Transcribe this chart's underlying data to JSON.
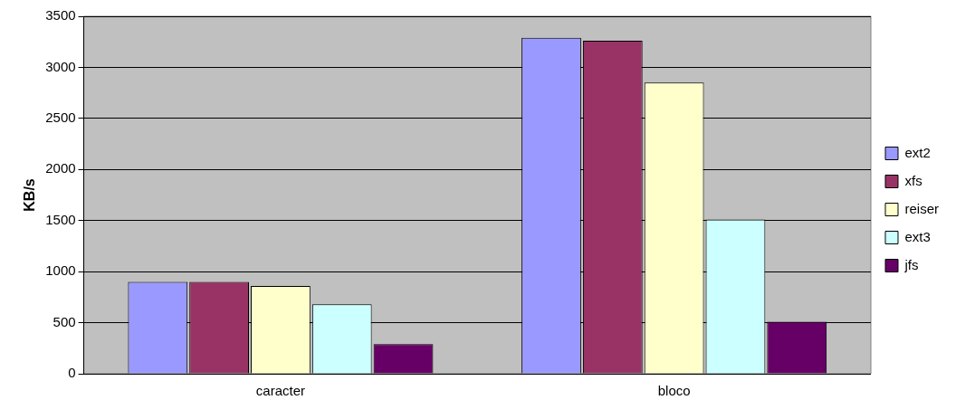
{
  "chart_data": {
    "type": "bar",
    "ylabel": "KB/s",
    "categories": [
      "caracter",
      "bloco"
    ],
    "series": [
      {
        "name": "ext2",
        "color": "#9999ff",
        "values": [
          900,
          3290
        ]
      },
      {
        "name": "xfs",
        "color": "#993366",
        "values": [
          900,
          3260
        ]
      },
      {
        "name": "reiser",
        "color": "#ffffcc",
        "values": [
          860,
          2850
        ]
      },
      {
        "name": "ext3",
        "color": "#ccffff",
        "values": [
          680,
          1510
        ]
      },
      {
        "name": "jfs",
        "color": "#660066",
        "values": [
          290,
          510
        ]
      }
    ],
    "ylim": [
      0,
      3500
    ],
    "yticks": [
      0,
      500,
      1000,
      1500,
      2000,
      2500,
      3000,
      3500
    ],
    "grid": "y",
    "legend": "right"
  }
}
